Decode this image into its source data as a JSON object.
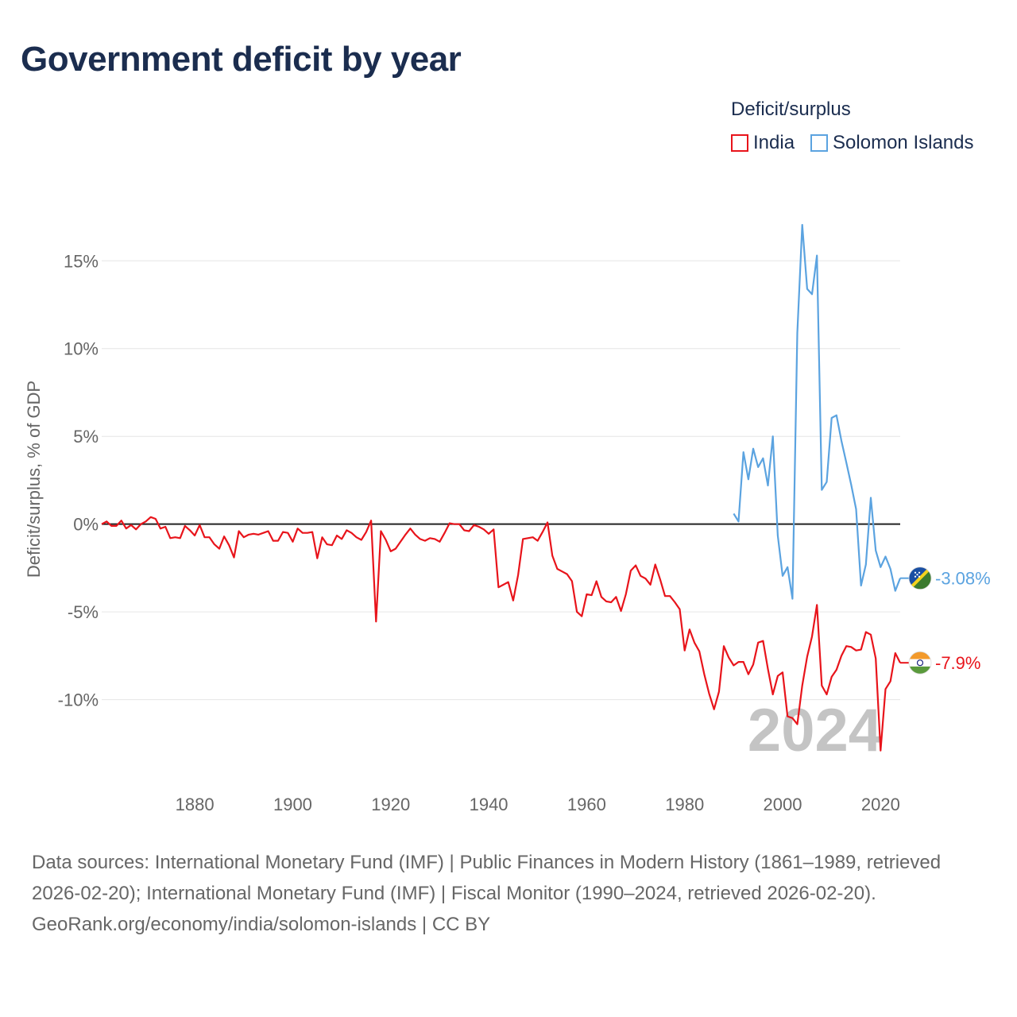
{
  "title": "Government deficit by year",
  "legend": {
    "title": "Deficit/surplus",
    "items": [
      {
        "label": "India",
        "color": "#e8141b"
      },
      {
        "label": "Solomon Islands",
        "color": "#5ba3e0"
      }
    ]
  },
  "chart_data": {
    "type": "line",
    "title": "Government deficit by year",
    "xlabel": "",
    "ylabel": "Deficit/surplus, % of GDP",
    "xlim": [
      1861,
      2024
    ],
    "ylim": [
      -14.5,
      18
    ],
    "x_ticks": [
      1880,
      1900,
      1920,
      1940,
      1960,
      1980,
      2000,
      2020
    ],
    "y_ticks": [
      15,
      10,
      5,
      0,
      -5,
      -10
    ],
    "y_tick_labels": [
      "15%",
      "10%",
      "5%",
      "0%",
      "-5%",
      "-10%"
    ],
    "x_tick_labels": [
      "1880",
      "1900",
      "1920",
      "1940",
      "1960",
      "1980",
      "2000",
      "2020"
    ],
    "zero_line": true,
    "year_label": "2024",
    "series": [
      {
        "name": "India",
        "color": "#e8141b",
        "end_label": "-7.9%",
        "points": [
          [
            1861,
            0
          ],
          [
            1862,
            0.15
          ],
          [
            1863,
            -0.1
          ],
          [
            1864,
            -0.1
          ],
          [
            1865,
            0.2
          ],
          [
            1866,
            -0.25
          ],
          [
            1867,
            -0.05
          ],
          [
            1868,
            -0.3
          ],
          [
            1869,
            0.0
          ],
          [
            1870,
            0.15
          ],
          [
            1871,
            0.4
          ],
          [
            1872,
            0.3
          ],
          [
            1873,
            -0.25
          ],
          [
            1874,
            -0.15
          ],
          [
            1875,
            -0.8
          ],
          [
            1876,
            -0.75
          ],
          [
            1877,
            -0.8
          ],
          [
            1878,
            -0.1
          ],
          [
            1879,
            -0.35
          ],
          [
            1880,
            -0.65
          ],
          [
            1881,
            -0.05
          ],
          [
            1882,
            -0.75
          ],
          [
            1883,
            -0.75
          ],
          [
            1884,
            -1.15
          ],
          [
            1885,
            -1.4
          ],
          [
            1886,
            -0.7
          ],
          [
            1887,
            -1.2
          ],
          [
            1888,
            -1.9
          ],
          [
            1889,
            -0.4
          ],
          [
            1890,
            -0.75
          ],
          [
            1891,
            -0.6
          ],
          [
            1892,
            -0.55
          ],
          [
            1893,
            -0.6
          ],
          [
            1894,
            -0.5
          ],
          [
            1895,
            -0.4
          ],
          [
            1896,
            -0.95
          ],
          [
            1897,
            -0.95
          ],
          [
            1898,
            -0.45
          ],
          [
            1899,
            -0.5
          ],
          [
            1900,
            -1.0
          ],
          [
            1901,
            -0.25
          ],
          [
            1902,
            -0.5
          ],
          [
            1903,
            -0.5
          ],
          [
            1904,
            -0.45
          ],
          [
            1905,
            -1.95
          ],
          [
            1906,
            -0.75
          ],
          [
            1907,
            -1.15
          ],
          [
            1908,
            -1.2
          ],
          [
            1909,
            -0.65
          ],
          [
            1910,
            -0.85
          ],
          [
            1911,
            -0.35
          ],
          [
            1912,
            -0.5
          ],
          [
            1913,
            -0.75
          ],
          [
            1914,
            -0.9
          ],
          [
            1915,
            -0.45
          ],
          [
            1916,
            0.2
          ],
          [
            1917,
            -5.55
          ],
          [
            1918,
            -0.4
          ],
          [
            1919,
            -0.9
          ],
          [
            1920,
            -1.55
          ],
          [
            1921,
            -1.4
          ],
          [
            1922,
            -1.0
          ],
          [
            1923,
            -0.6
          ],
          [
            1924,
            -0.25
          ],
          [
            1925,
            -0.6
          ],
          [
            1926,
            -0.85
          ],
          [
            1927,
            -0.95
          ],
          [
            1928,
            -0.8
          ],
          [
            1929,
            -0.85
          ],
          [
            1930,
            -1.0
          ],
          [
            1931,
            -0.5
          ],
          [
            1932,
            0.05
          ],
          [
            1933,
            0.0
          ],
          [
            1934,
            0.0
          ],
          [
            1935,
            -0.35
          ],
          [
            1936,
            -0.4
          ],
          [
            1937,
            -0.05
          ],
          [
            1938,
            -0.15
          ],
          [
            1939,
            -0.3
          ],
          [
            1940,
            -0.55
          ],
          [
            1941,
            -0.3
          ],
          [
            1942,
            -3.6
          ],
          [
            1943,
            -3.45
          ],
          [
            1944,
            -3.3
          ],
          [
            1945,
            -4.35
          ],
          [
            1946,
            -2.9
          ],
          [
            1947,
            -0.85
          ],
          [
            1948,
            -0.8
          ],
          [
            1949,
            -0.75
          ],
          [
            1950,
            -0.95
          ],
          [
            1951,
            -0.45
          ],
          [
            1952,
            0.1
          ],
          [
            1953,
            -1.8
          ],
          [
            1954,
            -2.55
          ],
          [
            1955,
            -2.7
          ],
          [
            1956,
            -2.85
          ],
          [
            1957,
            -3.25
          ],
          [
            1958,
            -5.0
          ],
          [
            1959,
            -5.25
          ],
          [
            1960,
            -4.0
          ],
          [
            1961,
            -4.05
          ],
          [
            1962,
            -3.25
          ],
          [
            1963,
            -4.15
          ],
          [
            1964,
            -4.4
          ],
          [
            1965,
            -4.45
          ],
          [
            1966,
            -4.15
          ],
          [
            1967,
            -4.95
          ],
          [
            1968,
            -4.0
          ],
          [
            1969,
            -2.65
          ],
          [
            1970,
            -2.35
          ],
          [
            1971,
            -2.95
          ],
          [
            1972,
            -3.1
          ],
          [
            1973,
            -3.45
          ],
          [
            1974,
            -2.3
          ],
          [
            1975,
            -3.15
          ],
          [
            1976,
            -4.1
          ],
          [
            1977,
            -4.1
          ],
          [
            1978,
            -4.45
          ],
          [
            1979,
            -4.85
          ],
          [
            1980,
            -7.2
          ],
          [
            1981,
            -6.0
          ],
          [
            1982,
            -6.75
          ],
          [
            1983,
            -7.25
          ],
          [
            1984,
            -8.55
          ],
          [
            1985,
            -9.65
          ],
          [
            1986,
            -10.55
          ],
          [
            1987,
            -9.55
          ],
          [
            1988,
            -6.95
          ],
          [
            1989,
            -7.6
          ],
          [
            1990,
            -8.05
          ],
          [
            1991,
            -7.85
          ],
          [
            1992,
            -7.85
          ],
          [
            1993,
            -8.55
          ],
          [
            1994,
            -8.0
          ],
          [
            1995,
            -6.75
          ],
          [
            1996,
            -6.65
          ],
          [
            1997,
            -8.25
          ],
          [
            1998,
            -9.7
          ],
          [
            1999,
            -8.65
          ],
          [
            2000,
            -8.45
          ],
          [
            2001,
            -10.95
          ],
          [
            2002,
            -11.05
          ],
          [
            2003,
            -11.4
          ],
          [
            2004,
            -9.2
          ],
          [
            2005,
            -7.55
          ],
          [
            2006,
            -6.4
          ],
          [
            2007,
            -4.6
          ],
          [
            2008,
            -9.2
          ],
          [
            2009,
            -9.7
          ],
          [
            2010,
            -8.7
          ],
          [
            2011,
            -8.3
          ],
          [
            2012,
            -7.5
          ],
          [
            2013,
            -6.95
          ],
          [
            2014,
            -7.0
          ],
          [
            2015,
            -7.2
          ],
          [
            2016,
            -7.15
          ],
          [
            2017,
            -6.15
          ],
          [
            2018,
            -6.3
          ],
          [
            2019,
            -7.65
          ],
          [
            2020,
            -12.9
          ],
          [
            2021,
            -9.4
          ],
          [
            2022,
            -8.95
          ],
          [
            2023,
            -7.35
          ],
          [
            2024,
            -7.9
          ]
        ]
      },
      {
        "name": "Solomon Islands",
        "color": "#5ba3e0",
        "end_label": "-3.08%",
        "points": [
          [
            1990,
            0.6
          ],
          [
            1991,
            0.15
          ],
          [
            1992,
            4.1
          ],
          [
            1993,
            2.55
          ],
          [
            1994,
            4.3
          ],
          [
            1995,
            3.25
          ],
          [
            1996,
            3.75
          ],
          [
            1997,
            2.2
          ],
          [
            1998,
            5.0
          ],
          [
            1999,
            -0.65
          ],
          [
            2000,
            -2.95
          ],
          [
            2001,
            -2.45
          ],
          [
            2002,
            -4.25
          ],
          [
            2003,
            10.9
          ],
          [
            2004,
            17.05
          ],
          [
            2005,
            13.4
          ],
          [
            2006,
            13.1
          ],
          [
            2007,
            15.3
          ],
          [
            2008,
            1.95
          ],
          [
            2009,
            2.4
          ],
          [
            2010,
            6.05
          ],
          [
            2011,
            6.2
          ],
          [
            2012,
            4.75
          ],
          [
            2013,
            3.5
          ],
          [
            2014,
            2.25
          ],
          [
            2015,
            0.85
          ],
          [
            2016,
            -3.5
          ],
          [
            2017,
            -2.3
          ],
          [
            2018,
            1.5
          ],
          [
            2019,
            -1.5
          ],
          [
            2020,
            -2.45
          ],
          [
            2021,
            -1.85
          ],
          [
            2022,
            -2.55
          ],
          [
            2023,
            -3.8
          ],
          [
            2024,
            -3.08
          ]
        ]
      }
    ]
  },
  "footer": {
    "sources": "Data sources: International Monetary Fund (IMF) | Public Finances in Modern History (1861–1989, retrieved 2026-02-20); International Monetary Fund (IMF) | Fiscal Monitor (1990–2024, retrieved 2026-02-20).",
    "credit": "GeoRank.org/economy/india/solomon-islands | CC BY"
  }
}
